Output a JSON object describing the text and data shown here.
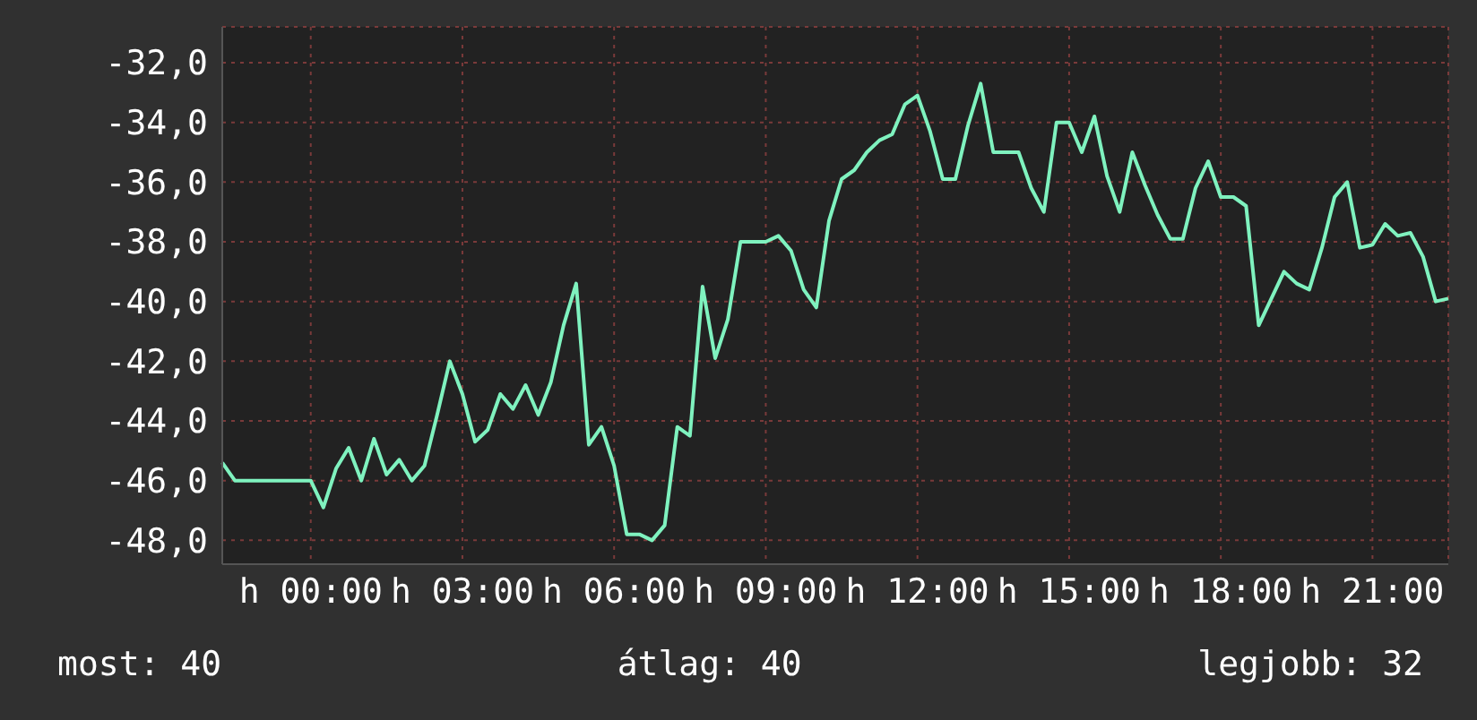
{
  "chart_data": {
    "type": "line",
    "categories": [
      null,
      null,
      null,
      null,
      null,
      null,
      null,
      "h 00:00",
      null,
      null,
      null,
      null,
      null,
      null,
      null,
      null,
      null,
      null,
      null,
      "h 03:00",
      null,
      null,
      null,
      null,
      null,
      null,
      null,
      null,
      null,
      null,
      null,
      "h 06:00",
      null,
      null,
      null,
      null,
      null,
      null,
      null,
      null,
      null,
      null,
      null,
      "h 09:00",
      null,
      null,
      null,
      null,
      null,
      null,
      null,
      null,
      null,
      null,
      null,
      "h 12:00",
      null,
      null,
      null,
      null,
      null,
      null,
      null,
      null,
      null,
      null,
      null,
      "h 15:00",
      null,
      null,
      null,
      null,
      null,
      null,
      null,
      null,
      null,
      null,
      null,
      "h 18:00",
      null,
      null,
      null,
      null,
      null,
      null,
      null,
      null,
      null,
      null,
      null,
      "h 21:00",
      null,
      null,
      null,
      null,
      null,
      null
    ],
    "series": [
      {
        "color": "#7ff2bf",
        "values": [
          -45.4,
          -46.0,
          -46.0,
          -46.0,
          -46.0,
          -46.0,
          -46.0,
          -46.0,
          -46.9,
          -45.6,
          -44.9,
          -46.0,
          -44.6,
          -45.8,
          -45.3,
          -46.0,
          -45.5,
          -43.8,
          -42.0,
          -43.1,
          -44.7,
          -44.3,
          -43.1,
          -43.6,
          -42.8,
          -43.8,
          -42.7,
          -40.8,
          -39.4,
          -44.8,
          -44.2,
          -45.5,
          -47.8,
          -47.8,
          -48.0,
          -47.5,
          -44.2,
          -44.5,
          -39.5,
          -41.9,
          -40.6,
          -38.0,
          -38.0,
          -38.0,
          -37.8,
          -38.3,
          -39.6,
          -40.2,
          -37.3,
          -35.9,
          -35.6,
          -35.0,
          -34.6,
          -34.4,
          -33.4,
          -33.1,
          -34.3,
          -35.9,
          -35.9,
          -34.1,
          -32.7,
          -35.0,
          -35.0,
          -35.0,
          -36.2,
          -37.0,
          -34.0,
          -34.0,
          -35.0,
          -33.8,
          -35.8,
          -37.0,
          -35.0,
          -36.1,
          -37.1,
          -37.9,
          -37.9,
          -36.2,
          -35.3,
          -36.5,
          -36.5,
          -36.8,
          -40.8,
          -39.9,
          -39.0,
          -39.4,
          -39.6,
          -38.2,
          -36.5,
          -36.0,
          -38.2,
          -38.1,
          -37.4,
          -37.8,
          -37.7,
          -38.5,
          -40.0,
          -39.9
        ]
      }
    ],
    "ylim": [
      -48.8,
      -30.8
    ],
    "yticks": [
      {
        "value": -48,
        "label": "-48,0"
      },
      {
        "value": -46,
        "label": "-46,0"
      },
      {
        "value": -44,
        "label": "-44,0"
      },
      {
        "value": -42,
        "label": "-42,0"
      },
      {
        "value": -40,
        "label": "-40,0"
      },
      {
        "value": -38,
        "label": "-38,0"
      },
      {
        "value": -36,
        "label": "-36,0"
      },
      {
        "value": -34,
        "label": "-34,0"
      },
      {
        "value": -32,
        "label": "-32,0"
      }
    ],
    "grid": true,
    "marker": "none",
    "line_style": "solid",
    "legend": false,
    "annotations": [
      "most: 40",
      "átlag: 40",
      "legjobb: 32"
    ]
  }
}
